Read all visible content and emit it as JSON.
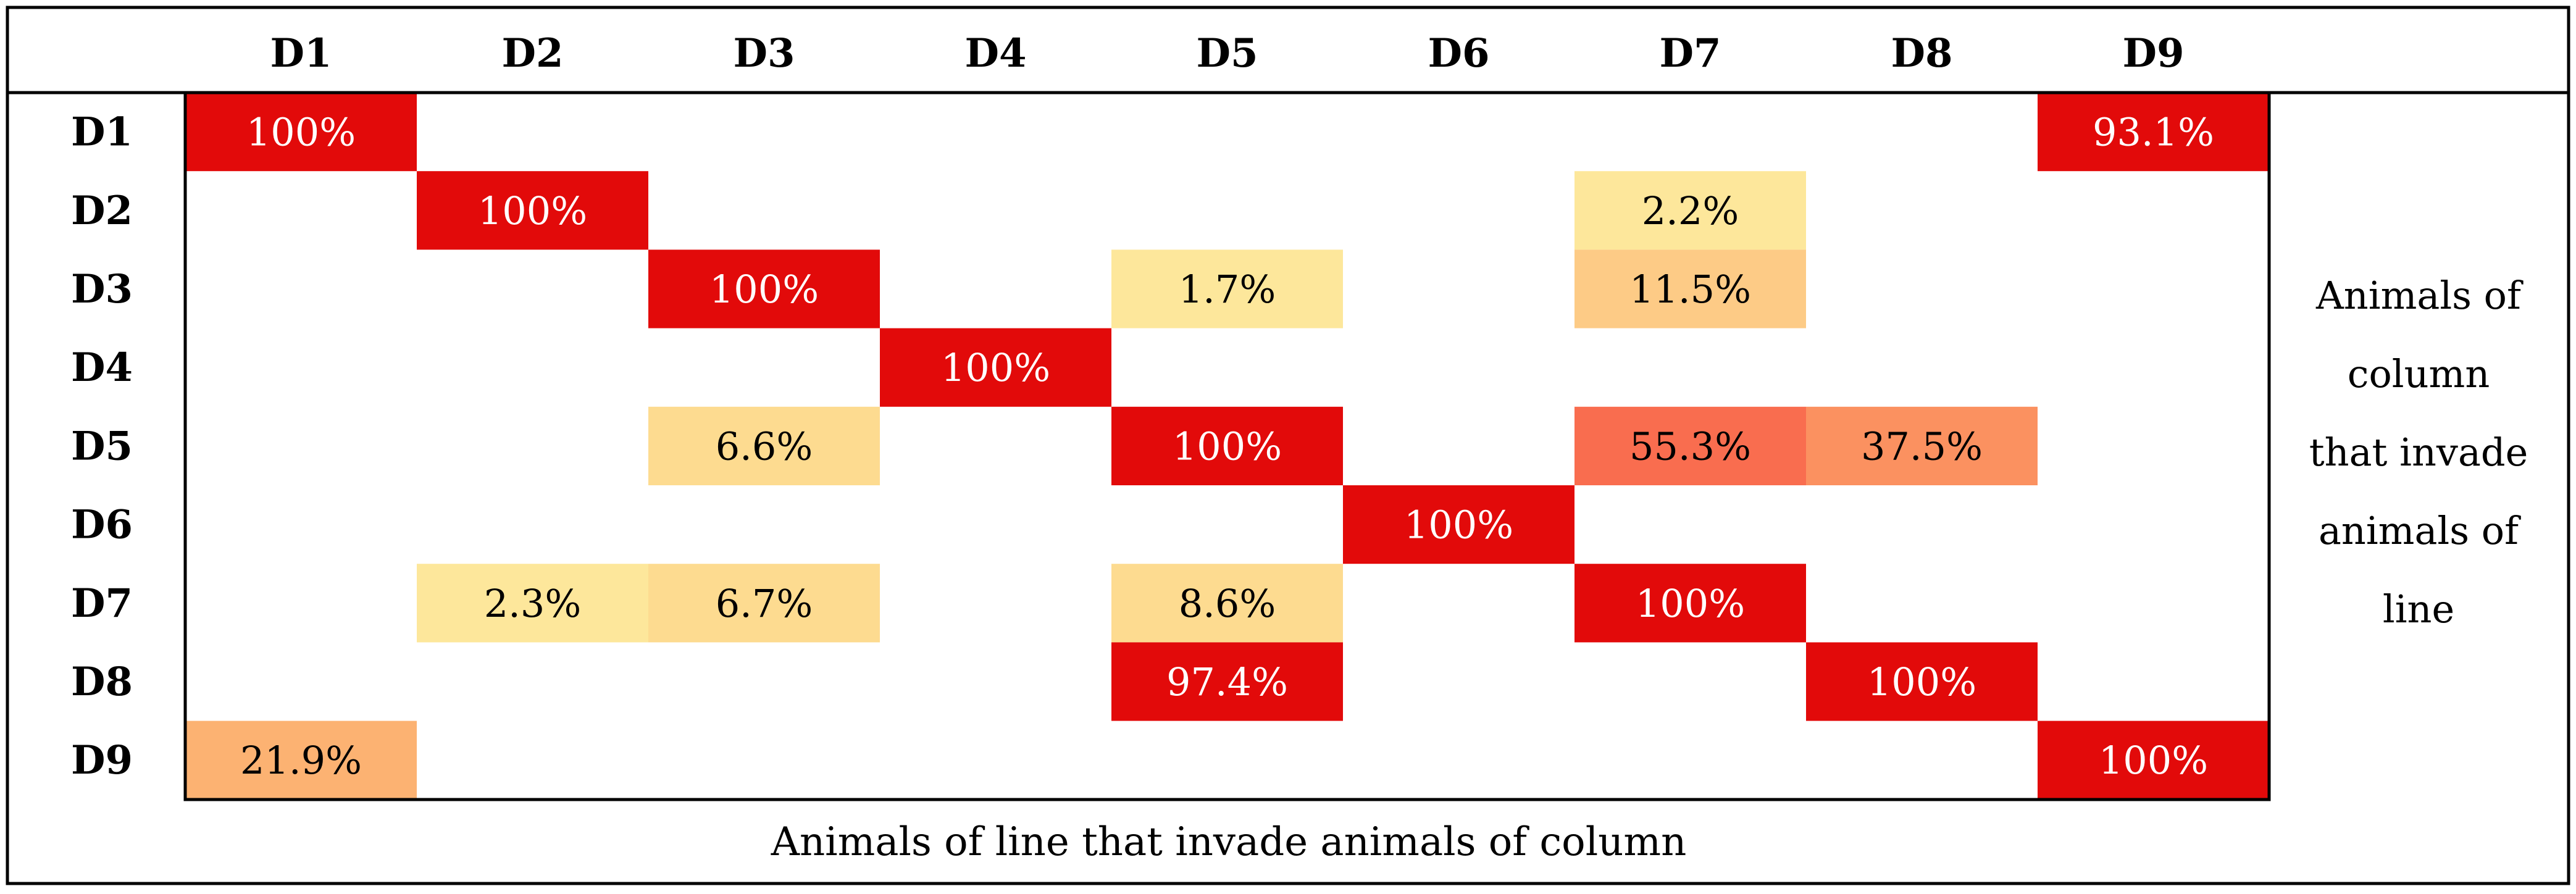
{
  "chart_data": {
    "type": "heatmap",
    "title": "",
    "columns": [
      "D1",
      "D2",
      "D3",
      "D4",
      "D5",
      "D6",
      "D7",
      "D8",
      "D9"
    ],
    "rows": [
      "D1",
      "D2",
      "D3",
      "D4",
      "D5",
      "D6",
      "D7",
      "D8",
      "D9"
    ],
    "value_unit": "%",
    "values": [
      [
        100,
        null,
        null,
        null,
        null,
        null,
        null,
        null,
        93.1
      ],
      [
        null,
        100,
        null,
        null,
        null,
        null,
        2.2,
        null,
        null
      ],
      [
        null,
        null,
        100,
        null,
        1.7,
        null,
        11.5,
        null,
        null
      ],
      [
        null,
        null,
        null,
        100,
        null,
        null,
        null,
        null,
        null
      ],
      [
        null,
        null,
        6.6,
        null,
        100,
        null,
        55.3,
        37.5,
        null
      ],
      [
        null,
        null,
        null,
        null,
        null,
        100,
        null,
        null,
        null
      ],
      [
        null,
        2.3,
        6.7,
        null,
        8.6,
        null,
        100,
        null,
        null
      ],
      [
        null,
        null,
        null,
        null,
        97.4,
        null,
        null,
        100,
        null
      ],
      [
        21.9,
        null,
        null,
        null,
        null,
        null,
        null,
        null,
        100
      ]
    ],
    "labels": [
      [
        "100%",
        "",
        "",
        "",
        "",
        "",
        "",
        "",
        "93.1%"
      ],
      [
        "",
        "100%",
        "",
        "",
        "",
        "",
        "2.2%",
        "",
        ""
      ],
      [
        "",
        "",
        "100%",
        "",
        "1.7%",
        "",
        "11.5%",
        "",
        ""
      ],
      [
        "",
        "",
        "",
        "100%",
        "",
        "",
        "",
        "",
        ""
      ],
      [
        "",
        "",
        "6.6%",
        "",
        "100%",
        "",
        "55.3%",
        "37.5%",
        ""
      ],
      [
        "",
        "",
        "",
        "",
        "",
        "100%",
        "",
        "",
        ""
      ],
      [
        "",
        "2.3%",
        "6.7%",
        "",
        "8.6%",
        "",
        "100%",
        "",
        ""
      ],
      [
        "",
        "",
        "",
        "",
        "97.4%",
        "",
        "",
        "100%",
        ""
      ],
      [
        "21.9%",
        "",
        "",
        "",
        "",
        "",
        "",
        "",
        "100%"
      ]
    ],
    "right_label_lines": [
      "Animals of",
      "column",
      "that invade",
      "animals of",
      "line"
    ],
    "bottom_label": "Animals of line that invade animals of column",
    "colors": {
      "border": "#000000",
      "text_dark": "#000000",
      "text_light": "#ffffff",
      "scale": [
        {
          "max": 3,
          "color": "#fde79b"
        },
        {
          "max": 10,
          "color": "#fddb90"
        },
        {
          "max": 15,
          "color": "#fdcb86"
        },
        {
          "max": 25,
          "color": "#fcb272"
        },
        {
          "max": 40,
          "color": "#fb9160"
        },
        {
          "max": 60,
          "color": "#f96d4f"
        },
        {
          "max": 100,
          "color": "#e20a0a"
        }
      ]
    }
  }
}
